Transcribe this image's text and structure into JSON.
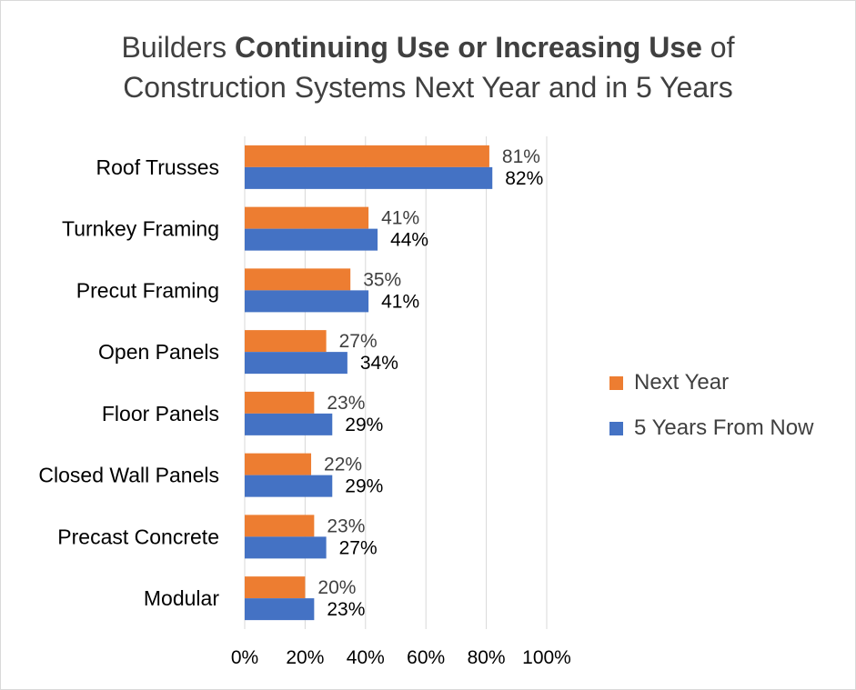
{
  "title": {
    "pre": "Builders ",
    "bold": "Continuing Use or Increasing Use",
    "post": " of",
    "line2": "Construction Systems Next Year and in 5 Years"
  },
  "colors": {
    "next_year": "#ed7d31",
    "five_years": "#4472c4",
    "grid": "#d9d9d9",
    "text": "#404040"
  },
  "chart_data": {
    "type": "bar",
    "orientation": "horizontal",
    "categories": [
      "Roof Trusses",
      "Turnkey Framing",
      "Precut Framing",
      "Open Panels",
      "Floor Panels",
      "Closed Wall Panels",
      "Precast Concrete",
      "Modular"
    ],
    "series": [
      {
        "name": "Next Year",
        "values": [
          81,
          41,
          35,
          27,
          23,
          22,
          23,
          20
        ],
        "labels": [
          "81%",
          "41%",
          "35%",
          "27%",
          "23%",
          "22%",
          "23%",
          "20%"
        ]
      },
      {
        "name": "5 Years From Now",
        "values": [
          82,
          44,
          41,
          34,
          29,
          29,
          27,
          23
        ],
        "labels": [
          "82%",
          "44%",
          "41%",
          "34%",
          "29%",
          "29%",
          "27%",
          "23%"
        ]
      }
    ],
    "xlim": [
      0,
      100
    ],
    "xticks": [
      "0%",
      "20%",
      "40%",
      "60%",
      "80%",
      "100%"
    ],
    "grid": true,
    "legend": "right"
  }
}
